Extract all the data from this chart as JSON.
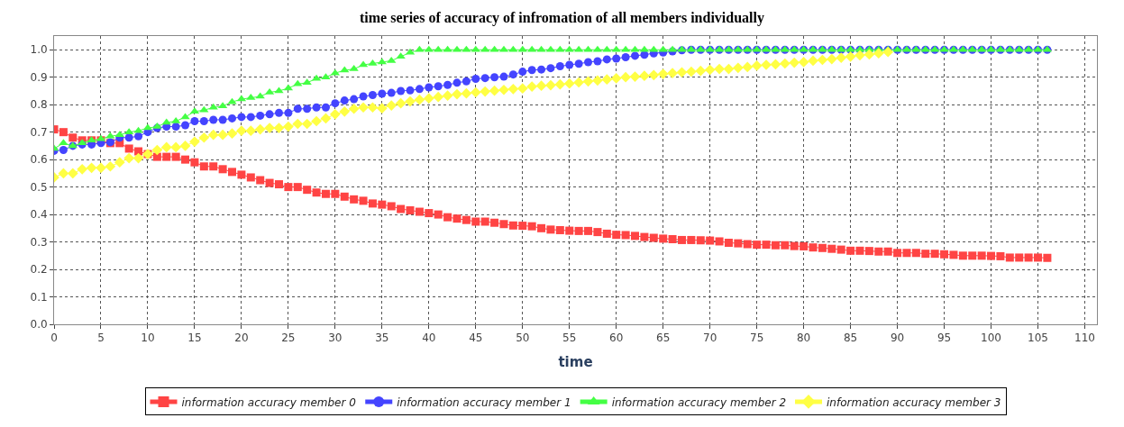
{
  "chart_data": {
    "type": "line",
    "title": "time series of accuracy of infromation of all members individually",
    "xlabel": "time",
    "x": [
      0,
      1,
      2,
      3,
      4,
      5,
      6,
      7,
      8,
      9,
      10,
      11,
      12,
      13,
      14,
      15,
      16,
      17,
      18,
      19,
      20,
      21,
      22,
      23,
      24,
      25,
      26,
      27,
      28,
      29,
      30,
      31,
      32,
      33,
      34,
      35,
      36,
      37,
      38,
      39,
      40,
      41,
      42,
      43,
      44,
      45,
      46,
      47,
      48,
      49,
      50,
      51,
      52,
      53,
      54,
      55,
      56,
      57,
      58,
      59,
      60,
      61,
      62,
      63,
      64,
      65,
      66,
      67,
      68,
      69,
      70,
      71,
      72,
      73,
      74,
      75,
      76,
      77,
      78,
      79,
      80,
      81,
      82,
      83,
      84,
      85,
      86,
      87,
      88,
      89,
      90,
      91,
      92,
      93,
      94,
      95,
      96,
      97,
      98,
      99,
      100,
      101,
      102,
      103,
      104,
      105,
      106
    ],
    "series": [
      {
        "name": "information accuracy member 0",
        "color": "#ff4444",
        "marker": "square",
        "values": [
          0.71,
          0.7,
          0.68,
          0.67,
          0.67,
          0.67,
          0.66,
          0.66,
          0.64,
          0.63,
          0.62,
          0.61,
          0.61,
          0.61,
          0.6,
          0.59,
          0.575,
          0.575,
          0.565,
          0.555,
          0.545,
          0.535,
          0.525,
          0.515,
          0.51,
          0.5,
          0.5,
          0.49,
          0.48,
          0.475,
          0.475,
          0.465,
          0.455,
          0.45,
          0.44,
          0.436,
          0.43,
          0.42,
          0.415,
          0.41,
          0.405,
          0.4,
          0.39,
          0.385,
          0.38,
          0.374,
          0.374,
          0.37,
          0.365,
          0.36,
          0.359,
          0.357,
          0.35,
          0.345,
          0.343,
          0.341,
          0.34,
          0.34,
          0.336,
          0.33,
          0.326,
          0.325,
          0.322,
          0.318,
          0.315,
          0.312,
          0.31,
          0.307,
          0.307,
          0.306,
          0.305,
          0.302,
          0.297,
          0.295,
          0.292,
          0.29,
          0.29,
          0.288,
          0.288,
          0.285,
          0.284,
          0.28,
          0.278,
          0.275,
          0.272,
          0.268,
          0.268,
          0.267,
          0.265,
          0.265,
          0.26,
          0.26,
          0.26,
          0.257,
          0.257,
          0.255,
          0.253,
          0.25,
          0.25,
          0.25,
          0.249,
          0.248,
          0.243,
          0.243,
          0.243,
          0.243,
          0.242
        ]
      },
      {
        "name": "information accuracy member 1",
        "color": "#4444ff",
        "marker": "circle",
        "values": [
          0.632,
          0.635,
          0.65,
          0.655,
          0.655,
          0.66,
          0.663,
          0.68,
          0.68,
          0.685,
          0.7,
          0.715,
          0.72,
          0.72,
          0.725,
          0.74,
          0.74,
          0.745,
          0.745,
          0.75,
          0.755,
          0.755,
          0.76,
          0.765,
          0.77,
          0.77,
          0.785,
          0.785,
          0.79,
          0.79,
          0.805,
          0.815,
          0.82,
          0.83,
          0.835,
          0.84,
          0.843,
          0.85,
          0.852,
          0.857,
          0.863,
          0.867,
          0.872,
          0.88,
          0.885,
          0.894,
          0.897,
          0.9,
          0.902,
          0.91,
          0.92,
          0.926,
          0.928,
          0.933,
          0.94,
          0.945,
          0.949,
          0.955,
          0.958,
          0.965,
          0.968,
          0.973,
          0.978,
          0.982,
          0.987,
          0.99,
          0.994,
          0.998,
          1,
          1,
          1,
          1,
          1,
          1,
          1,
          1,
          1,
          1,
          1,
          1,
          1,
          1,
          1,
          1,
          1,
          1,
          1,
          1,
          1,
          1,
          1,
          1,
          1,
          1,
          1,
          1,
          1,
          1,
          1,
          1,
          1,
          1,
          1,
          1,
          1,
          1,
          1
        ]
      },
      {
        "name": "information accuracy member 2",
        "color": "#44ff44",
        "marker": "triangle",
        "values": [
          0.64,
          0.66,
          0.65,
          0.66,
          0.67,
          0.675,
          0.685,
          0.69,
          0.7,
          0.705,
          0.715,
          0.72,
          0.735,
          0.74,
          0.755,
          0.775,
          0.78,
          0.79,
          0.795,
          0.81,
          0.82,
          0.825,
          0.83,
          0.845,
          0.85,
          0.86,
          0.875,
          0.88,
          0.895,
          0.9,
          0.915,
          0.925,
          0.93,
          0.945,
          0.95,
          0.955,
          0.96,
          0.975,
          0.99,
          1,
          1,
          1,
          1,
          1,
          1,
          1,
          1,
          1,
          1,
          1,
          1,
          1,
          1,
          1,
          1,
          1,
          1,
          1,
          1,
          1,
          1,
          1,
          1,
          1,
          1,
          1,
          1,
          1,
          1,
          1,
          1,
          1,
          1,
          1,
          1,
          1,
          1,
          1,
          1,
          1,
          1,
          1,
          1,
          1,
          1,
          1,
          1,
          1,
          1,
          1,
          1,
          1,
          1,
          1,
          1,
          1,
          1,
          1,
          1,
          1,
          1,
          1,
          1,
          1,
          1,
          1,
          1
        ]
      },
      {
        "name": "information accuracy member 3",
        "color": "#ffff44",
        "marker": "diamond",
        "values": [
          0.535,
          0.55,
          0.55,
          0.565,
          0.57,
          0.57,
          0.575,
          0.59,
          0.605,
          0.605,
          0.62,
          0.635,
          0.645,
          0.645,
          0.65,
          0.665,
          0.68,
          0.69,
          0.69,
          0.695,
          0.705,
          0.705,
          0.71,
          0.715,
          0.715,
          0.72,
          0.73,
          0.73,
          0.74,
          0.75,
          0.765,
          0.775,
          0.785,
          0.79,
          0.79,
          0.787,
          0.797,
          0.805,
          0.812,
          0.818,
          0.823,
          0.828,
          0.833,
          0.838,
          0.841,
          0.845,
          0.848,
          0.851,
          0.854,
          0.857,
          0.859,
          0.866,
          0.869,
          0.871,
          0.874,
          0.877,
          0.881,
          0.885,
          0.888,
          0.892,
          0.896,
          0.9,
          0.902,
          0.905,
          0.908,
          0.912,
          0.915,
          0.918,
          0.92,
          0.923,
          0.927,
          0.93,
          0.93,
          0.934,
          0.937,
          0.942,
          0.945,
          0.947,
          0.95,
          0.953,
          0.955,
          0.96,
          0.963,
          0.966,
          0.971,
          0.975,
          0.98,
          0.983,
          0.987,
          0.992,
          null,
          null,
          null,
          null,
          null,
          null,
          null,
          null,
          null,
          null,
          null,
          null,
          null,
          null,
          null,
          null,
          null
        ]
      }
    ],
    "xlim": [
      0,
      111.3
    ],
    "xticks": [
      0,
      5,
      10,
      15,
      20,
      25,
      30,
      35,
      40,
      45,
      50,
      55,
      60,
      65,
      70,
      75,
      80,
      85,
      90,
      95,
      100,
      105,
      110
    ],
    "ylim": [
      0,
      1.05
    ],
    "yticks": [
      {
        "value": 0,
        "label": "0.0"
      },
      0.1,
      0.2,
      0.3,
      0.4,
      0.5,
      0.6,
      0.7,
      0.8,
      0.9,
      {
        "value": 1,
        "label": "1.0"
      }
    ],
    "grid": true,
    "legend": "bottom",
    "line_style": "solid"
  }
}
